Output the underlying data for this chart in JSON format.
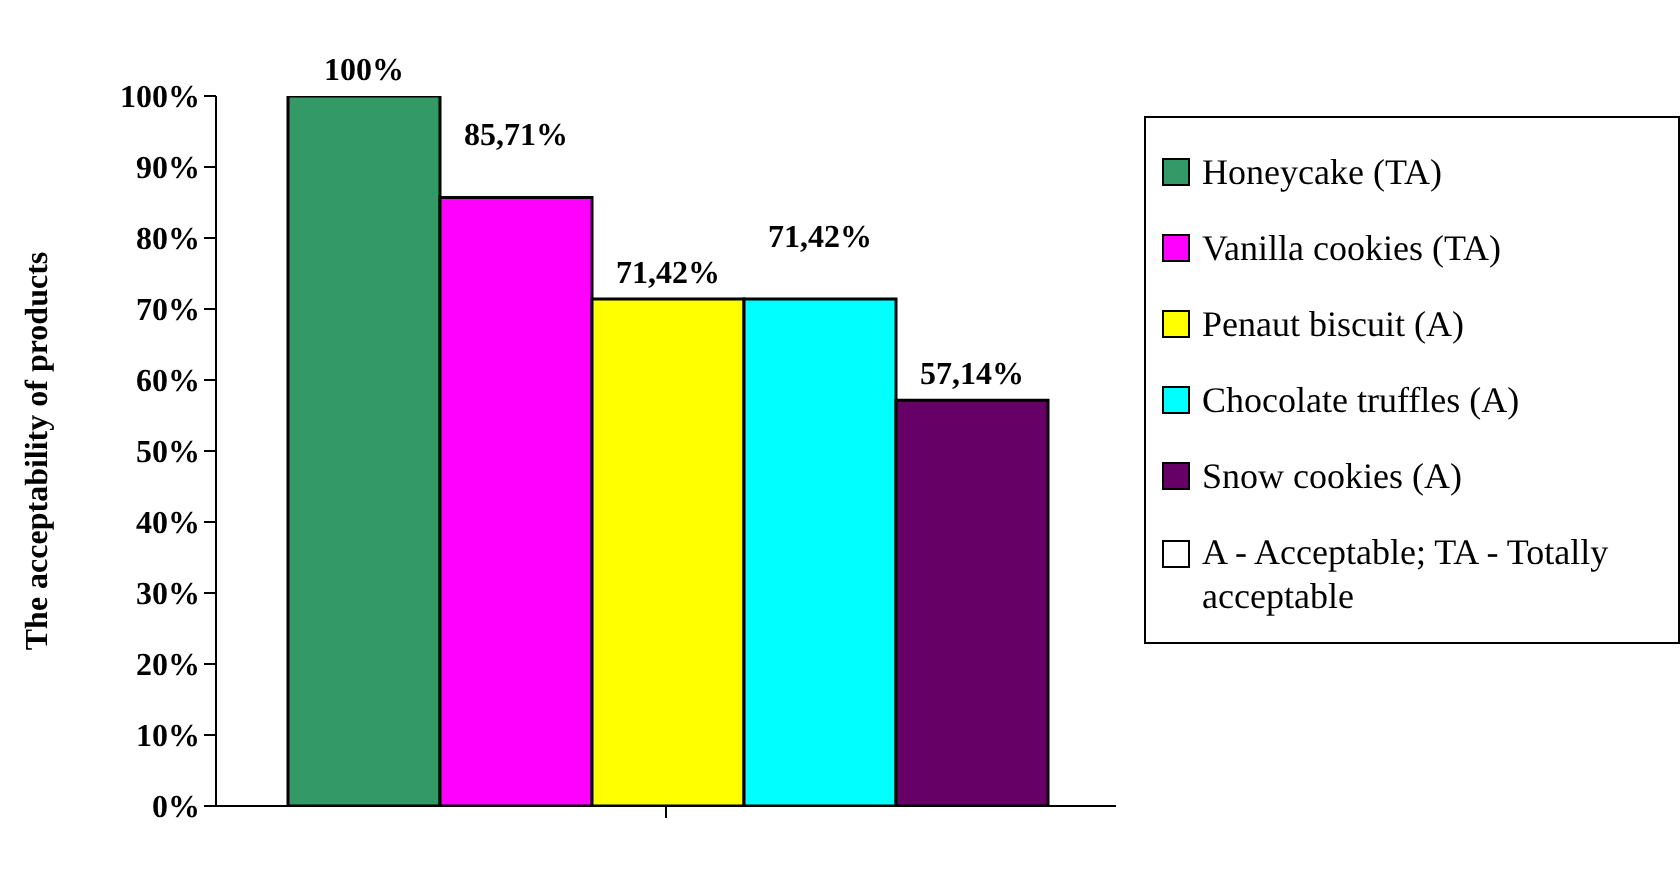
{
  "chart_data": {
    "type": "bar",
    "ylabel": "The acceptability of products",
    "categories": [
      null
    ],
    "series": [
      {
        "name": "Honeycake  (TA)",
        "color": "#339966",
        "values": [
          100
        ],
        "value_labels": [
          "100%"
        ]
      },
      {
        "name": "Vanilla cookies  (TA)",
        "color": "#ff00ff",
        "values": [
          85.71
        ],
        "value_labels": [
          "85,71%"
        ]
      },
      {
        "name": "Penaut biscuit  (A)",
        "color": "#ffff00",
        "values": [
          71.42
        ],
        "value_labels": [
          "71,42%"
        ]
      },
      {
        "name": "Chocolate truffles  (A)",
        "color": "#00ffff",
        "values": [
          71.42
        ],
        "value_labels": [
          "71,42%"
        ]
      },
      {
        "name": "Snow cookies (A)",
        "color": "#660066",
        "values": [
          57.14
        ],
        "value_labels": [
          "57,14%"
        ]
      }
    ],
    "ylim": [
      0,
      100
    ],
    "yticks": [
      {
        "value": 0,
        "label": "0%"
      },
      {
        "value": 10,
        "label": "10%"
      },
      {
        "value": 20,
        "label": "20%"
      },
      {
        "value": 30,
        "label": "30%"
      },
      {
        "value": 40,
        "label": "40%"
      },
      {
        "value": 50,
        "label": "50%"
      },
      {
        "value": 60,
        "label": "60%"
      },
      {
        "value": 70,
        "label": "70%"
      },
      {
        "value": 80,
        "label": "80%"
      },
      {
        "value": 90,
        "label": "90%"
      },
      {
        "value": 100,
        "label": "100%"
      }
    ],
    "legend": "right",
    "annotations": [
      "A - Acceptable; TA - Totally acceptable"
    ]
  }
}
